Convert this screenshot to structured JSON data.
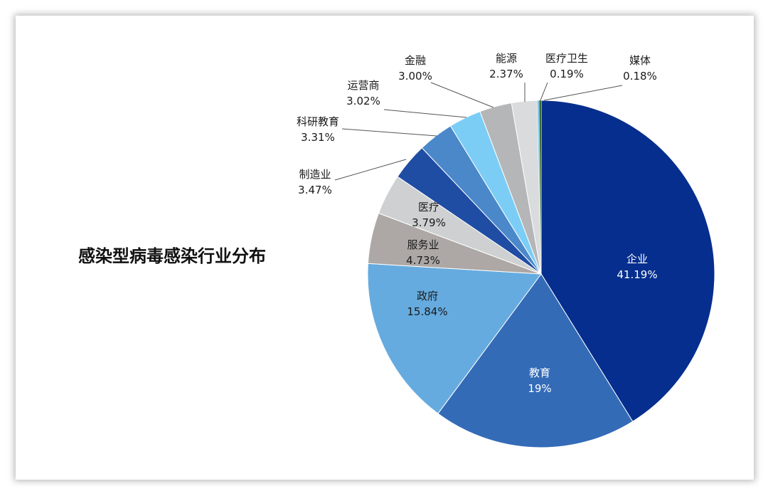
{
  "chart_data": {
    "type": "pie",
    "title": "感染型病毒感染行业分布",
    "start_angle_deg": 0,
    "direction": "clockwise",
    "slices": [
      {
        "name": "企业",
        "label": "41.19%",
        "value": 41.19,
        "color": "#062e8e"
      },
      {
        "name": "教育",
        "label": "19%",
        "value": 19.0,
        "color": "#336bb7"
      },
      {
        "name": "政府",
        "label": "15.84%",
        "value": 15.84,
        "color": "#65abdf"
      },
      {
        "name": "服务业",
        "label": "4.73%",
        "value": 4.73,
        "color": "#ada8a5"
      },
      {
        "name": "医疗",
        "label": "3.79%",
        "value": 3.79,
        "color": "#cfd0d1"
      },
      {
        "name": "制造业",
        "label": "3.47%",
        "value": 3.47,
        "color": "#1f4da4"
      },
      {
        "name": "科研教育",
        "label": "3.31%",
        "value": 3.31,
        "color": "#4a88c9"
      },
      {
        "name": "运营商",
        "label": "3.02%",
        "value": 3.02,
        "color": "#7ccdf5"
      },
      {
        "name": "金融",
        "label": "3.00%",
        "value": 3.0,
        "color": "#b5b6b7"
      },
      {
        "name": "能源",
        "label": "2.37%",
        "value": 2.37,
        "color": "#dadbdc"
      },
      {
        "name": "医疗卫生",
        "label": "0.19%",
        "value": 0.19,
        "color": "#86c9ea"
      },
      {
        "name": "媒体",
        "label": "0.18%",
        "value": 0.18,
        "color": "#2b5e1e"
      }
    ],
    "legend": "none"
  }
}
